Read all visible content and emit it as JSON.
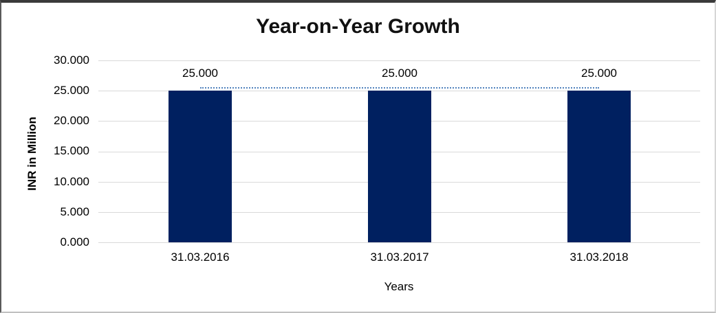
{
  "chart_data": {
    "type": "bar",
    "title": "Year-on-Year Growth",
    "xlabel": "Years",
    "ylabel": "INR in Million",
    "categories": [
      "31.03.2016",
      "31.03.2017",
      "31.03.2018"
    ],
    "values": [
      25.0,
      25.0,
      25.0
    ],
    "data_labels": [
      "25.000",
      "25.000",
      "25.000"
    ],
    "y_ticks": [
      "30.000",
      "25.000",
      "20.000",
      "15.000",
      "10.000",
      "5.000",
      "0.000"
    ],
    "ylim": [
      0,
      30
    ],
    "grid": "horizontal-every-5",
    "legend": "none",
    "trendline": {
      "value": 25.0,
      "style": "dotted",
      "color": "#4F81BD"
    },
    "colors": {
      "bar": "#002060",
      "gridline": "#D9D9D9",
      "trendline": "#4F81BD",
      "title": "#111111",
      "text": "#000000",
      "background": "#FFFFFF"
    }
  }
}
